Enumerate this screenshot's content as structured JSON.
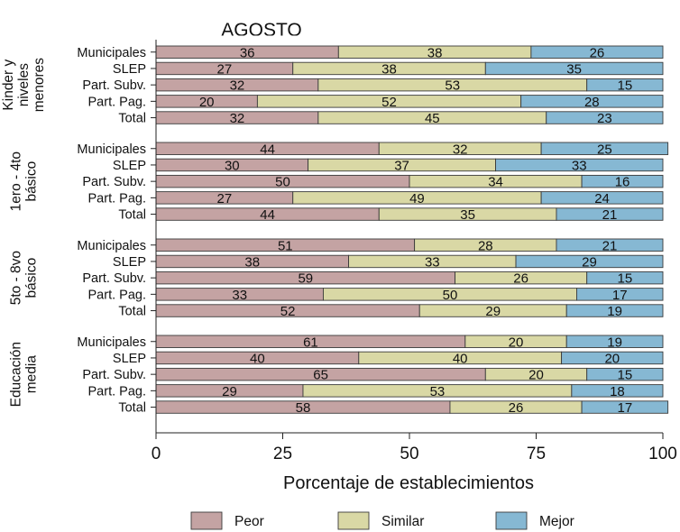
{
  "chart_data": {
    "type": "bar",
    "orientation": "horizontal",
    "stacked": true,
    "title": "AGOSTO",
    "xlabel": "Porcentaje de establecimientos",
    "xlim": [
      0,
      100
    ],
    "xticks": [
      0,
      25,
      50,
      75,
      100
    ],
    "grid": false,
    "legend_position": "bottom",
    "series": [
      {
        "name": "Peor",
        "color": "#c4a3a3"
      },
      {
        "name": "Similar",
        "color": "#d9d8a5"
      },
      {
        "name": "Mejor",
        "color": "#86b8d3"
      }
    ],
    "groups": [
      {
        "label": [
          "Kinder y",
          "niveles",
          "menores"
        ],
        "rows": [
          {
            "category": "Municipales",
            "values": [
              36,
              38,
              26
            ]
          },
          {
            "category": "SLEP",
            "values": [
              27,
              38,
              35
            ]
          },
          {
            "category": "Part. Subv.",
            "values": [
              32,
              53,
              15
            ]
          },
          {
            "category": "Part. Pag.",
            "values": [
              20,
              52,
              28
            ]
          },
          {
            "category": "Total",
            "values": [
              32,
              45,
              23
            ]
          }
        ]
      },
      {
        "label": [
          "1ero - 4to",
          "básico"
        ],
        "rows": [
          {
            "category": "Municipales",
            "values": [
              44,
              32,
              25
            ]
          },
          {
            "category": "SLEP",
            "values": [
              30,
              37,
              33
            ]
          },
          {
            "category": "Part. Subv.",
            "values": [
              50,
              34,
              16
            ]
          },
          {
            "category": "Part. Pag.",
            "values": [
              27,
              49,
              24
            ]
          },
          {
            "category": "Total",
            "values": [
              44,
              35,
              21
            ]
          }
        ]
      },
      {
        "label": [
          "5to - 8vo",
          "básico"
        ],
        "rows": [
          {
            "category": "Municipales",
            "values": [
              51,
              28,
              21
            ]
          },
          {
            "category": "SLEP",
            "values": [
              38,
              33,
              29
            ]
          },
          {
            "category": "Part. Subv.",
            "values": [
              59,
              26,
              15
            ]
          },
          {
            "category": "Part. Pag.",
            "values": [
              33,
              50,
              17
            ]
          },
          {
            "category": "Total",
            "values": [
              52,
              29,
              19
            ]
          }
        ]
      },
      {
        "label": [
          "Educación",
          "media"
        ],
        "rows": [
          {
            "category": "Municipales",
            "values": [
              61,
              20,
              19
            ]
          },
          {
            "category": "SLEP",
            "values": [
              40,
              40,
              20
            ]
          },
          {
            "category": "Part. Subv.",
            "values": [
              65,
              20,
              15
            ]
          },
          {
            "category": "Part. Pag.",
            "values": [
              29,
              53,
              18
            ]
          },
          {
            "category": "Total",
            "values": [
              58,
              26,
              17
            ]
          }
        ]
      }
    ]
  }
}
